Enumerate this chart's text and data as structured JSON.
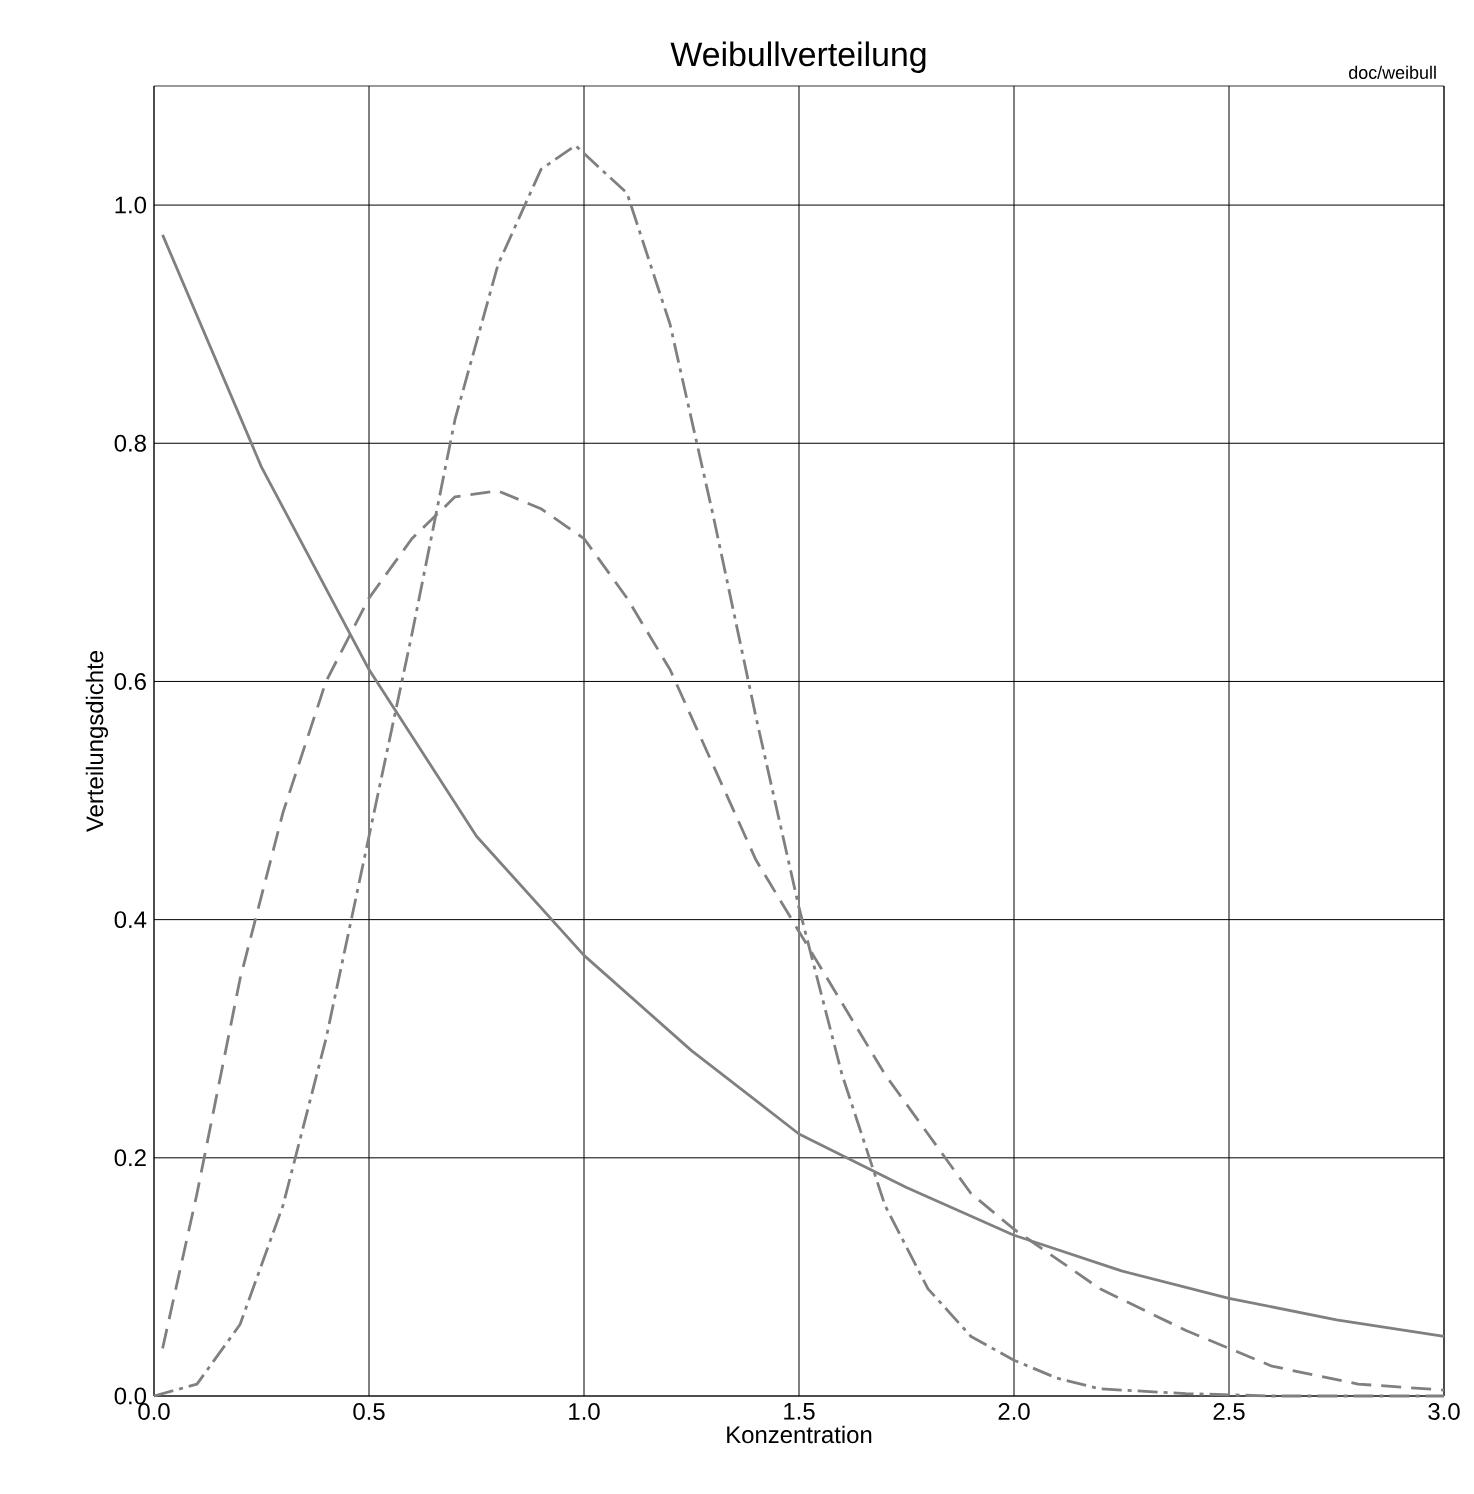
{
  "chart_data": {
    "type": "line",
    "title": "Weibullverteilung",
    "xlabel": "Konzentration",
    "ylabel": "Verteilungsdichte",
    "annotations": [
      "doc/weibull"
    ],
    "xlim": [
      0,
      3
    ],
    "ylim": [
      0,
      1.1
    ],
    "xticks": [
      {
        "value": 0,
        "label": "0.0"
      },
      {
        "value": 0.5,
        "label": "0.5"
      },
      {
        "value": 1,
        "label": "1.0"
      },
      {
        "value": 1.5,
        "label": "1.5"
      },
      {
        "value": 2,
        "label": "2.0"
      },
      {
        "value": 2.5,
        "label": "2.5"
      },
      {
        "value": 3,
        "label": "3.0"
      }
    ],
    "yticks": [
      {
        "value": 0,
        "label": "0.0"
      },
      {
        "value": 0.2,
        "label": "0.2"
      },
      {
        "value": 0.4,
        "label": "0.4"
      },
      {
        "value": 0.6,
        "label": "0.6"
      },
      {
        "value": 0.8,
        "label": "0.8"
      },
      {
        "value": 1,
        "label": "1.0"
      }
    ],
    "grid": true,
    "marker": "none",
    "series": [
      {
        "color": "#808080",
        "line_style": "solid",
        "x": [
          0.02,
          0.25,
          0.5,
          0.75,
          1.0,
          1.25,
          1.5,
          1.75,
          2.0,
          2.25,
          2.5,
          2.75,
          3.0
        ],
        "values": [
          0.975,
          0.78,
          0.61,
          0.47,
          0.37,
          0.29,
          0.22,
          0.175,
          0.135,
          0.105,
          0.082,
          0.064,
          0.05
        ]
      },
      {
        "color": "#808080",
        "line_style": "dashed",
        "x": [
          0.02,
          0.1,
          0.2,
          0.3,
          0.4,
          0.5,
          0.6,
          0.7,
          0.8,
          0.9,
          1.0,
          1.1,
          1.2,
          1.3,
          1.4,
          1.5,
          1.6,
          1.7,
          1.8,
          1.9,
          2.0,
          2.2,
          2.4,
          2.6,
          2.8,
          3.0
        ],
        "values": [
          0.04,
          0.17,
          0.35,
          0.49,
          0.6,
          0.67,
          0.72,
          0.755,
          0.76,
          0.745,
          0.72,
          0.67,
          0.61,
          0.53,
          0.45,
          0.39,
          0.33,
          0.27,
          0.22,
          0.17,
          0.14,
          0.09,
          0.055,
          0.025,
          0.01,
          0.005
        ]
      },
      {
        "color": "#808080",
        "line_style": "dashdot",
        "x": [
          0.0,
          0.1,
          0.2,
          0.3,
          0.4,
          0.5,
          0.6,
          0.7,
          0.8,
          0.9,
          0.98,
          1.1,
          1.2,
          1.3,
          1.4,
          1.5,
          1.6,
          1.7,
          1.8,
          1.9,
          2.0,
          2.1,
          2.2,
          2.4,
          2.6,
          3.0
        ],
        "values": [
          0.0,
          0.01,
          0.06,
          0.16,
          0.3,
          0.47,
          0.64,
          0.82,
          0.95,
          1.03,
          1.05,
          1.01,
          0.9,
          0.74,
          0.57,
          0.41,
          0.27,
          0.16,
          0.09,
          0.05,
          0.03,
          0.015,
          0.006,
          0.002,
          0.0,
          0.0
        ]
      }
    ]
  }
}
